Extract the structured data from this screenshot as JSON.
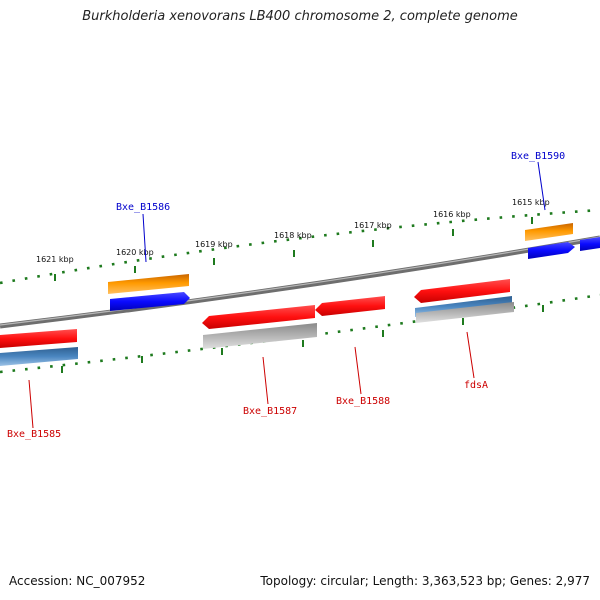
{
  "title": "Burkholderia xenovorans LB400 chromosome 2, complete genome",
  "footer": {
    "accession": "Accession: NC_007952",
    "summary": "Topology: circular; Length: 3,363,523 bp; Genes: 2,977"
  },
  "colors": {
    "backbone": "#7a7a7a",
    "tick": "#1e7a1e",
    "label_forward": "#0000cc",
    "label_reverse": "#cc0000",
    "red": "#ff1a1a",
    "blue": "#0a0aff",
    "orange": "#ff9a00",
    "steel": "#4a86c0",
    "gray": "#b4b4b4"
  },
  "scale_labels": [
    "1621 kbp",
    "1620 kbp",
    "1619 kbp",
    "1618 kbp",
    "1617 kbp",
    "1616 kbp",
    "1615 kbp"
  ],
  "genes": [
    {
      "id": "Bxe_B1585",
      "strand": "reverse",
      "labeled": true
    },
    {
      "id": "Bxe_B1586",
      "strand": "forward",
      "labeled": true
    },
    {
      "id": "Bxe_B1587",
      "strand": "reverse",
      "labeled": true
    },
    {
      "id": "Bxe_B1588",
      "strand": "reverse",
      "labeled": true
    },
    {
      "id": "fdsA",
      "strand": "reverse",
      "labeled": true
    },
    {
      "id": "Bxe_B1590",
      "strand": "forward",
      "labeled": true
    }
  ]
}
